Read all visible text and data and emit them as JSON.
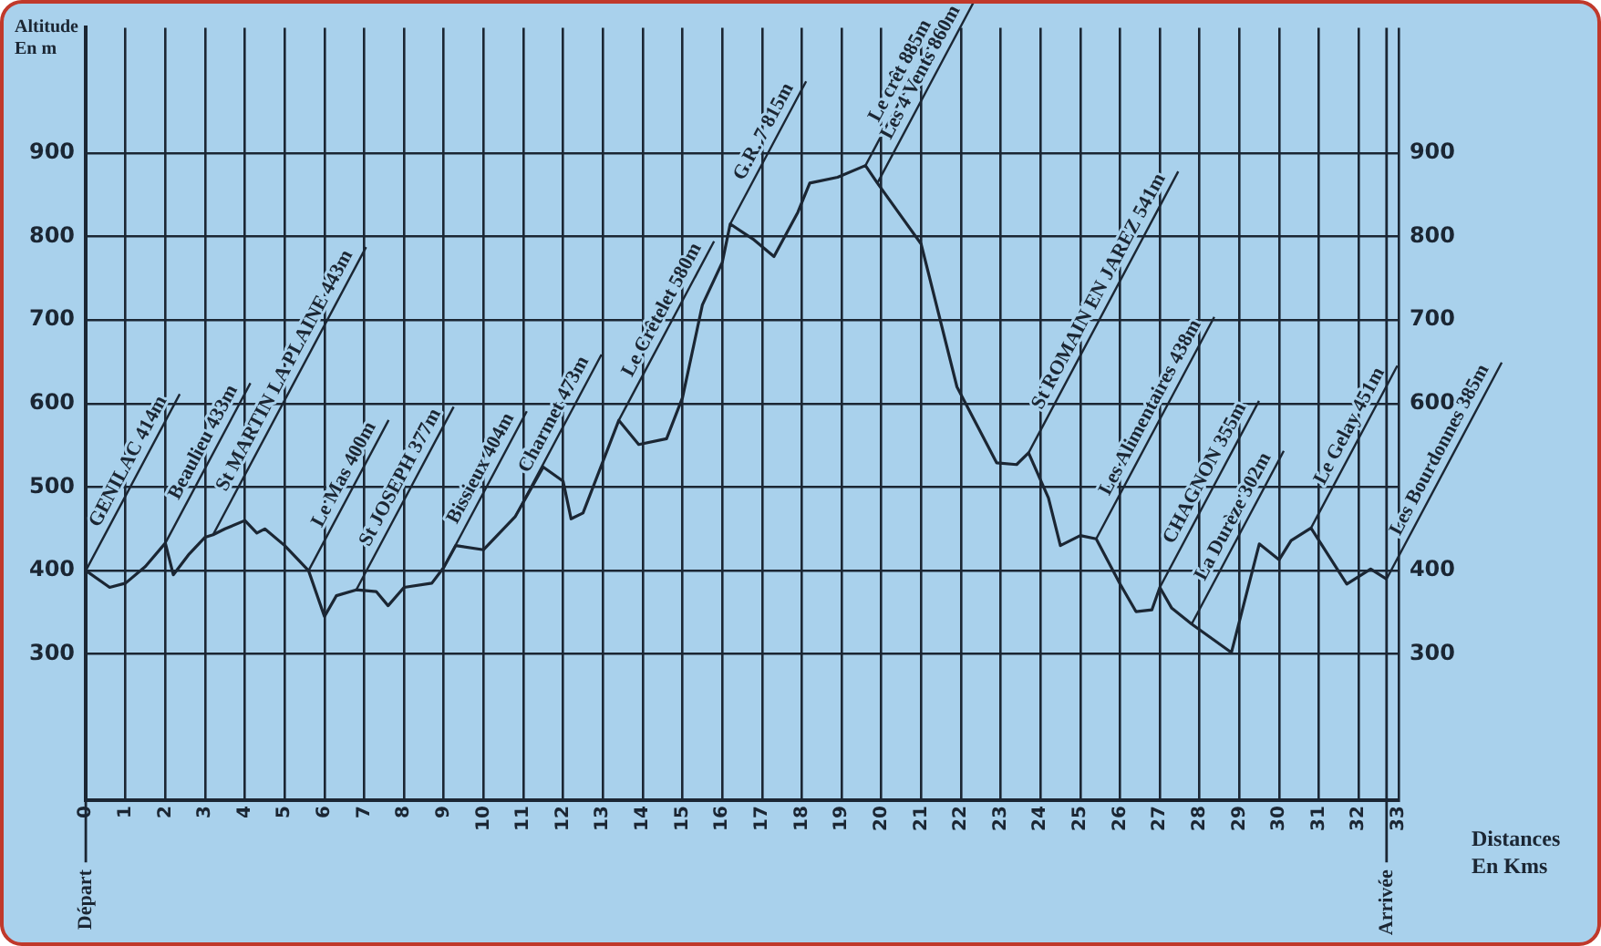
{
  "chart_data": {
    "type": "line",
    "xlabel": "Distances\nEn Kms",
    "ylabel": "Altitude\nEn m",
    "color": "#1b2633",
    "marker": "none",
    "line_style": "solid",
    "grid": true,
    "legend": false,
    "x": [
      0,
      0.6,
      1,
      1.5,
      2,
      2.2,
      2.6,
      3,
      3.2,
      3.5,
      4,
      4.3,
      4.5,
      5,
      5.6,
      6,
      6.3,
      6.8,
      7.3,
      7.6,
      8,
      8.7,
      9,
      9.3,
      10,
      10.8,
      11.5,
      12,
      12.2,
      12.5,
      13.4,
      13.9,
      14.6,
      15,
      15.5,
      16,
      16.2,
      16.8,
      17.3,
      17.9,
      18.2,
      18.9,
      19.6,
      19.9,
      21,
      21.9,
      22.9,
      23.4,
      23.7,
      24.2,
      24.5,
      25,
      25.4,
      26,
      26.4,
      26.8,
      27,
      27.3,
      27.8,
      28.8,
      29.5,
      30,
      30.3,
      30.8,
      31.7,
      32.3,
      32.7
    ],
    "values": [
      400,
      380,
      385,
      405,
      433,
      395,
      420,
      440,
      443,
      450,
      460,
      445,
      450,
      430,
      400,
      345,
      370,
      377,
      375,
      358,
      380,
      385,
      404,
      430,
      425,
      465,
      524,
      507,
      462,
      469,
      580,
      551,
      558,
      607,
      718,
      769,
      815,
      796,
      776,
      829,
      864,
      871,
      885,
      864,
      791,
      620,
      529,
      527,
      541,
      487,
      430,
      442,
      438,
      384,
      351,
      353,
      380,
      355,
      336,
      302,
      432,
      413,
      436,
      451,
      384,
      402,
      390
    ],
    "xlim": [
      0,
      33
    ],
    "xticks": [
      0,
      1,
      2,
      3,
      4,
      5,
      6,
      7,
      8,
      9,
      10,
      11,
      12,
      13,
      14,
      15,
      16,
      17,
      18,
      19,
      20,
      21,
      22,
      23,
      24,
      25,
      26,
      27,
      28,
      29,
      30,
      31,
      32,
      33
    ],
    "ylim": [
      125,
      1050
    ],
    "yticks": [
      300,
      400,
      500,
      600,
      700,
      800,
      900
    ],
    "y2lim": [
      125,
      1050
    ],
    "y2ticks": [
      300,
      400,
      600,
      700,
      800,
      900
    ],
    "ref_lines": [
      {
        "axis": "x",
        "value": 0,
        "label": "Départ"
      },
      {
        "axis": "x",
        "value": 32.7,
        "label": "Arrivée"
      }
    ],
    "annotations": [
      {
        "text": "GENILAC 414m",
        "x": 0,
        "y": 400
      },
      {
        "text": "Beaulieu 433m",
        "x": 2,
        "y": 433
      },
      {
        "text": "St MARTIN LA PLAINE 443m",
        "x": 3.2,
        "y": 443
      },
      {
        "text": "Le Mas 400m",
        "x": 5.6,
        "y": 400
      },
      {
        "text": "St JOSEPH 377m",
        "x": 6.8,
        "y": 377
      },
      {
        "text": "Bissieux 404m",
        "x": 9,
        "y": 404
      },
      {
        "text": "Charmet 473m",
        "x": 10.8,
        "y": 465
      },
      {
        "text": "Le Crêtelet 580m",
        "x": 13.4,
        "y": 580
      },
      {
        "text": "G.R. 7 815m",
        "x": 16.2,
        "y": 815
      },
      {
        "text": "Le crêt 885m",
        "x": 19.6,
        "y": 885
      },
      {
        "text": "Les 4 Vents 860m",
        "x": 19.9,
        "y": 864
      },
      {
        "text": "St ROMAIN EN JAREZ 541m",
        "x": 23.7,
        "y": 541
      },
      {
        "text": "Les Alimentaires 438m",
        "x": 25.4,
        "y": 438
      },
      {
        "text": "CHAGNON 355m",
        "x": 27,
        "y": 380
      },
      {
        "text": "La Durèze 302m",
        "x": 27.8,
        "y": 336
      },
      {
        "text": "Le Gelay 451m",
        "x": 30.8,
        "y": 451
      },
      {
        "text": "Les Bourdonnes 385m",
        "x": 32.7,
        "y": 390
      }
    ]
  }
}
